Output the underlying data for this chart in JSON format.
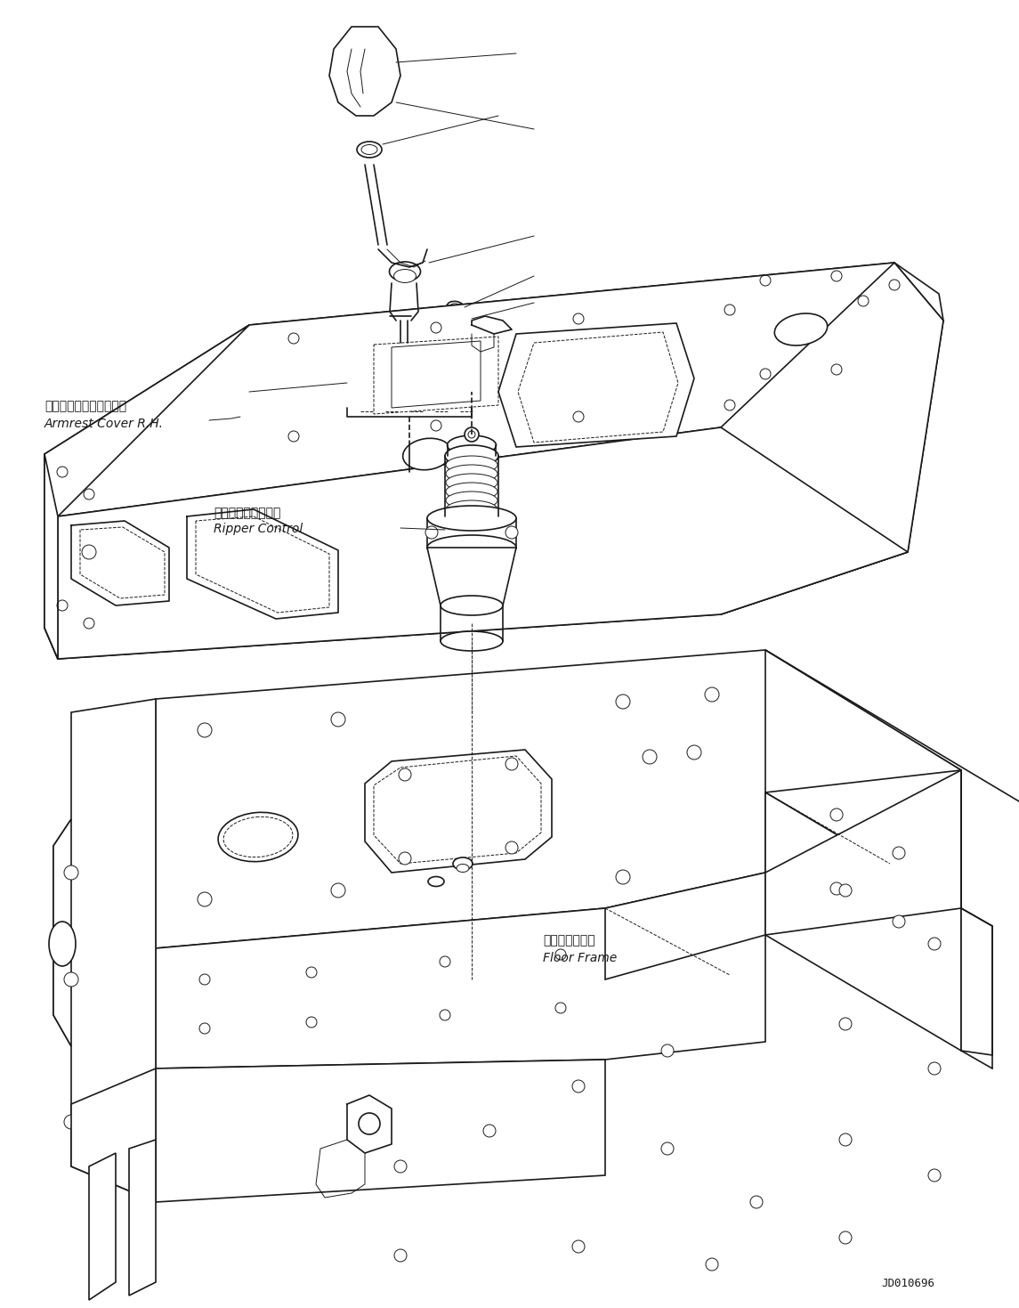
{
  "bg_color": "#ffffff",
  "line_color": "#1a1a1a",
  "lw_main": 1.2,
  "lw_thin": 0.7,
  "lw_dashed": 0.7,
  "label_armrest_jp": "アームレストカバー　右",
  "label_armrest_en": "Armrest Cover R.H.",
  "label_ripper_jp": "リッパコントロール",
  "label_ripper_en": "Ripper Control",
  "label_floor_jp": "フロアフレーム",
  "label_floor_en": "Floor Frame",
  "diagram_id": "JD010696",
  "font_size_label": 10,
  "font_size_id": 9
}
